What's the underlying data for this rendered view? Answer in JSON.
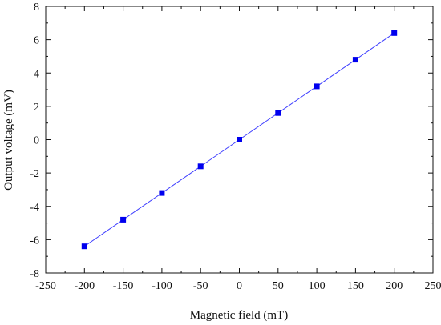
{
  "chart_data": {
    "type": "scatter",
    "title": "",
    "xlabel": "Magnetic field (mT)",
    "ylabel": "Output voltage (mV)",
    "xlim": [
      -250,
      250
    ],
    "ylim": [
      -8,
      8
    ],
    "xticks": [
      -250,
      -200,
      -150,
      -100,
      -50,
      0,
      50,
      100,
      150,
      200,
      250
    ],
    "yticks": [
      -8,
      -6,
      -4,
      -2,
      0,
      2,
      4,
      6,
      8
    ],
    "grid": false,
    "marker_color": "#0000ee",
    "line_color": "#3f3fff",
    "series": [
      {
        "x": [
          -200,
          -150,
          -100,
          -50,
          0,
          50,
          100,
          150,
          200
        ],
        "y": [
          -6.4,
          -4.8,
          -3.2,
          -1.6,
          0.0,
          1.6,
          3.2,
          4.8,
          6.4
        ],
        "marker": "square",
        "fit_line": true
      }
    ]
  }
}
